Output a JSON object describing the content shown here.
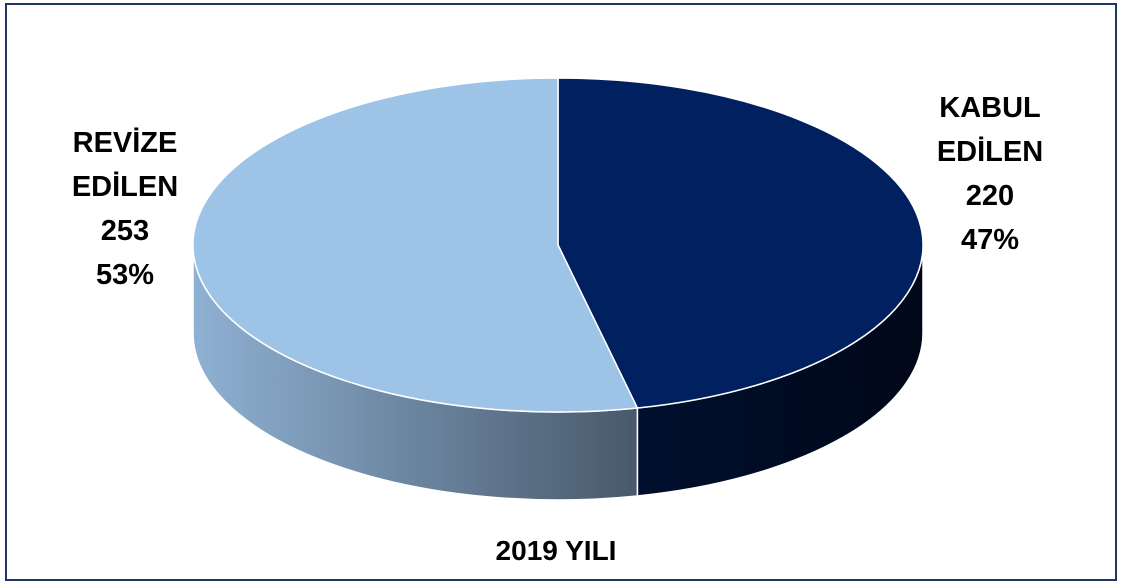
{
  "chart_data": {
    "type": "pie3d",
    "title": "2019 YILI",
    "categories": [
      "KABUL EDİLEN",
      "REVİZE EDİLEN"
    ],
    "values": [
      220,
      253
    ],
    "percentages": [
      47,
      53
    ],
    "percentage_labels": [
      "47%",
      "53%"
    ],
    "colors": [
      "#002060",
      "#9dc3e6"
    ]
  }
}
